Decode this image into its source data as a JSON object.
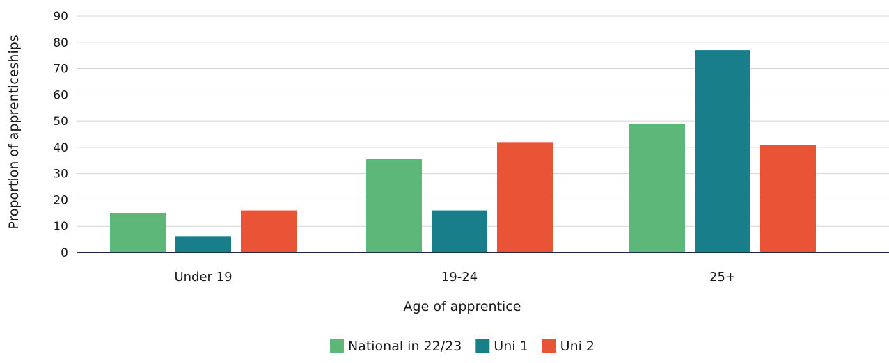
{
  "chart_data": {
    "type": "bar",
    "categories": [
      "Under 19",
      "19-24",
      "25+"
    ],
    "series": [
      {
        "name": "National in 22/23",
        "color": "#5cb779",
        "values": [
          15,
          35.5,
          49
        ]
      },
      {
        "name": "Uni 1",
        "color": "#177e8a",
        "values": [
          6,
          16,
          77
        ]
      },
      {
        "name": "Uni 2",
        "color": "#e95336",
        "values": [
          16,
          42,
          41
        ]
      }
    ],
    "xlabel": "Age of apprentice",
    "ylabel": "Proportion of apprenticeships",
    "ylim": [
      0,
      90
    ],
    "yticks": [
      0,
      10,
      20,
      30,
      40,
      50,
      60,
      70,
      80,
      90
    ],
    "grid": true,
    "legend": "bottom-center"
  }
}
